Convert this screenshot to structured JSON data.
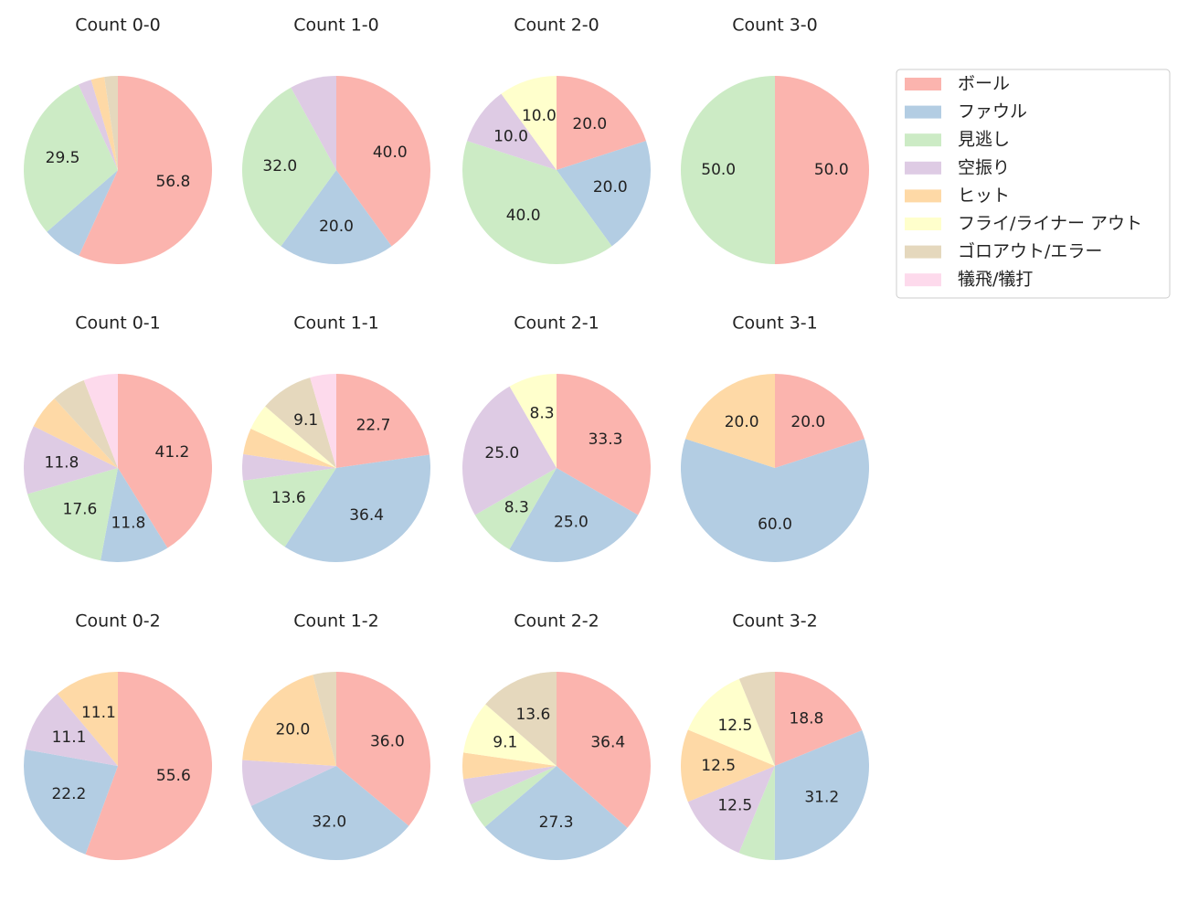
{
  "legend": {
    "labels": [
      "ボール",
      "ファウル",
      "見逃し",
      "空振り",
      "ヒット",
      "フライ/ライナー アウト",
      "ゴロアウト/エラー",
      "犠飛/犠打"
    ],
    "colors": [
      "#fbb4ae",
      "#b3cde3",
      "#ccebc5",
      "#decbe4",
      "#fed9a6",
      "#ffffcc",
      "#e5d8bd",
      "#fddaec"
    ]
  },
  "chart_data": [
    {
      "type": "pie",
      "title": "Count 0-0",
      "values": [
        56.8,
        6.8,
        29.5,
        2.3,
        2.3,
        0,
        2.3,
        0
      ],
      "value_labels": [
        "56.8",
        null,
        "29.5",
        null,
        null,
        null,
        null,
        null
      ]
    },
    {
      "type": "pie",
      "title": "Count 1-0",
      "values": [
        40,
        20,
        32,
        8,
        0,
        0,
        0,
        0
      ],
      "value_labels": [
        "40.0",
        "20.0",
        "32.0",
        null,
        null,
        null,
        null,
        null
      ]
    },
    {
      "type": "pie",
      "title": "Count 2-0",
      "values": [
        20,
        20,
        40,
        10,
        0,
        10,
        0,
        0
      ],
      "value_labels": [
        "20.0",
        "20.0",
        "40.0",
        "10.0",
        null,
        "10.0",
        null,
        null
      ]
    },
    {
      "type": "pie",
      "title": "Count 3-0",
      "values": [
        50,
        0,
        50,
        0,
        0,
        0,
        0,
        0
      ],
      "value_labels": [
        "50.0",
        null,
        "50.0",
        null,
        null,
        null,
        null,
        null
      ]
    },
    {
      "type": "pie",
      "title": "Count 0-1",
      "values": [
        41.2,
        11.8,
        17.6,
        11.8,
        5.9,
        0,
        5.9,
        5.9
      ],
      "value_labels": [
        "41.2",
        "11.8",
        "17.6",
        "11.8",
        null,
        null,
        null,
        null
      ]
    },
    {
      "type": "pie",
      "title": "Count 1-1",
      "values": [
        22.7,
        36.4,
        13.6,
        4.5,
        4.5,
        4.5,
        9.1,
        4.5
      ],
      "value_labels": [
        "22.7",
        "36.4",
        "13.6",
        null,
        null,
        null,
        "9.1",
        null
      ]
    },
    {
      "type": "pie",
      "title": "Count 2-1",
      "values": [
        33.3,
        25.0,
        8.3,
        25.0,
        0,
        8.3,
        0,
        0
      ],
      "value_labels": [
        "33.3",
        "25.0",
        "8.3",
        "25.0",
        null,
        "8.3",
        null,
        null
      ]
    },
    {
      "type": "pie",
      "title": "Count 3-1",
      "values": [
        20,
        60,
        0,
        0,
        20,
        0,
        0,
        0
      ],
      "value_labels": [
        "20.0",
        "60.0",
        null,
        null,
        "20.0",
        null,
        null,
        null
      ]
    },
    {
      "type": "pie",
      "title": "Count 0-2",
      "values": [
        55.6,
        22.2,
        0,
        11.1,
        11.1,
        0,
        0,
        0
      ],
      "value_labels": [
        "55.6",
        "22.2",
        null,
        "11.1",
        "11.1",
        null,
        null,
        null
      ]
    },
    {
      "type": "pie",
      "title": "Count 1-2",
      "values": [
        36,
        32,
        0,
        8,
        20,
        0,
        4,
        0
      ],
      "value_labels": [
        "36.0",
        "32.0",
        null,
        null,
        "20.0",
        null,
        null,
        null
      ]
    },
    {
      "type": "pie",
      "title": "Count 2-2",
      "values": [
        36.4,
        27.3,
        4.5,
        4.5,
        4.5,
        9.1,
        13.6,
        0
      ],
      "value_labels": [
        "36.4",
        "27.3",
        null,
        null,
        null,
        "9.1",
        "13.6",
        null
      ]
    },
    {
      "type": "pie",
      "title": "Count 3-2",
      "values": [
        18.8,
        31.2,
        6.2,
        12.5,
        12.5,
        12.5,
        6.2,
        0
      ],
      "value_labels": [
        "18.8",
        "31.2",
        null,
        "12.5",
        "12.5",
        "12.5",
        null,
        null
      ]
    }
  ]
}
